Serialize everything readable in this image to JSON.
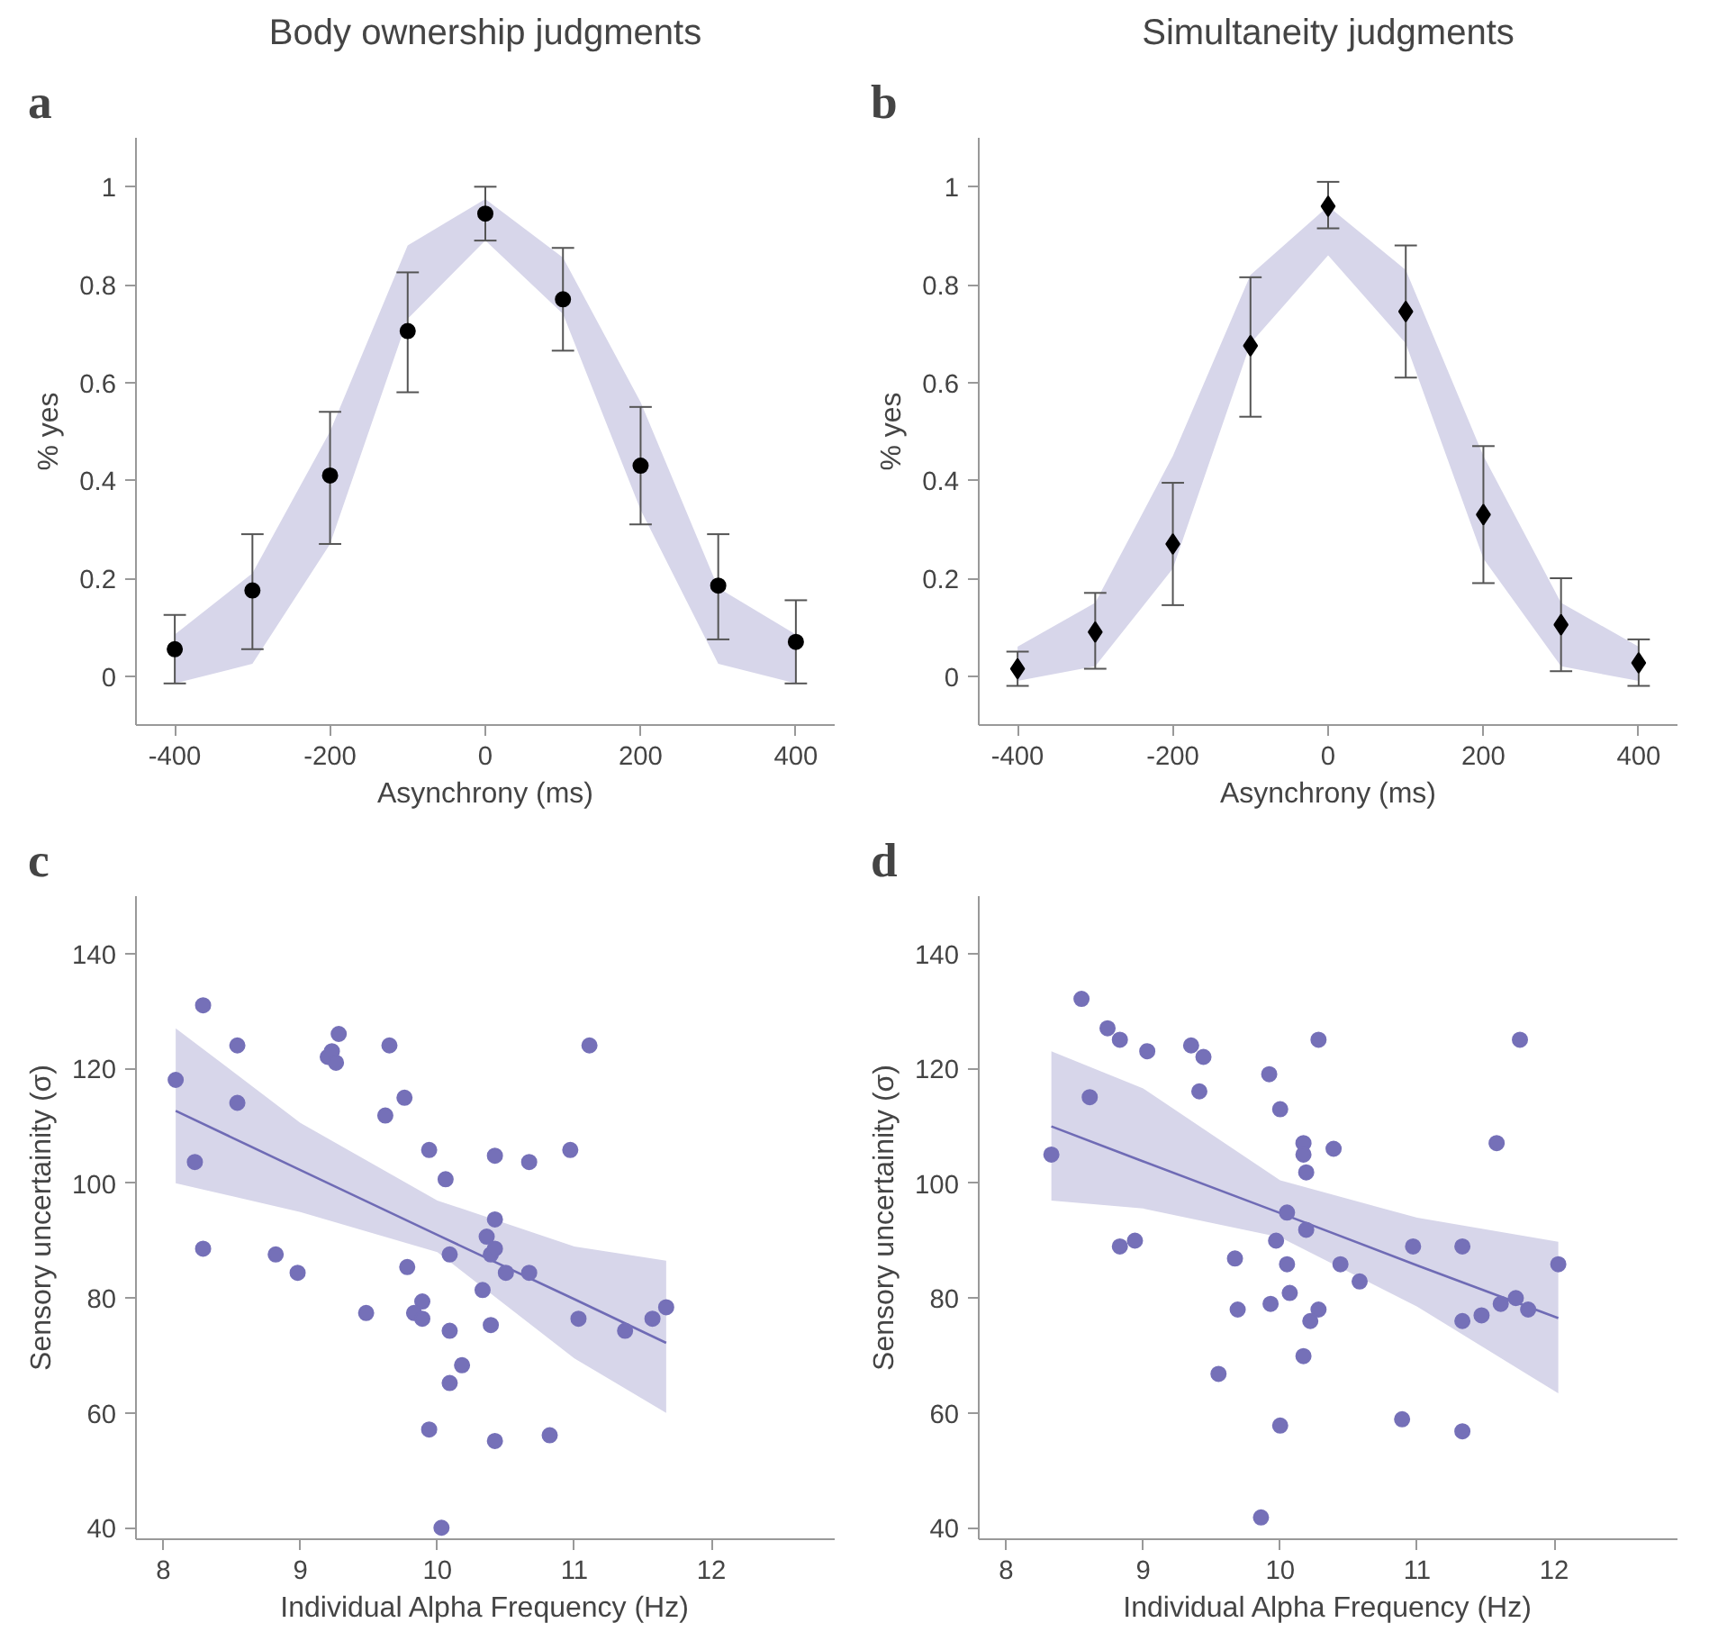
{
  "chart_data": [
    {
      "type": "scatter",
      "title": "Body ownership judgments",
      "xlabel": "Asynchrony (ms)",
      "ylabel": "% yes",
      "annotations": [
        "a"
      ],
      "x": [
        -400,
        -300,
        -200,
        -100,
        0,
        100,
        200,
        300,
        400
      ],
      "series": [
        {
          "color": "#000000",
          "marker": "circle",
          "values": [
            0.055,
            0.175,
            0.41,
            0.705,
            0.945,
            0.77,
            0.43,
            0.185,
            0.07
          ],
          "lower": [
            -0.015,
            0.025,
            0.27,
            0.73,
            0.89,
            0.74,
            0.34,
            0.025,
            -0.015
          ],
          "upper": [
            0.085,
            0.21,
            0.5,
            0.88,
            0.975,
            0.855,
            0.56,
            0.18,
            0.085
          ],
          "errors": [
            [
              -0.015,
              0.125
            ],
            [
              0.055,
              0.29
            ],
            [
              0.27,
              0.54
            ],
            [
              0.58,
              0.825
            ],
            [
              0.89,
              1.0
            ],
            [
              0.665,
              0.875
            ],
            [
              0.31,
              0.55
            ],
            [
              0.075,
              0.29
            ],
            [
              -0.015,
              0.155
            ]
          ]
        }
      ],
      "xlim": [
        -450,
        450
      ],
      "ylim": [
        -0.1,
        1.1
      ],
      "xticks": [
        -400,
        -200,
        0,
        200,
        400
      ],
      "yticks": [
        0,
        0.2,
        0.4,
        0.6,
        0.8,
        1
      ],
      "grid": false
    },
    {
      "type": "scatter",
      "title": "Simultaneity judgments",
      "xlabel": "Asynchrony (ms)",
      "ylabel": "% yes",
      "annotations": [
        "b"
      ],
      "x": [
        -400,
        -300,
        -200,
        -100,
        0,
        100,
        200,
        300,
        400
      ],
      "series": [
        {
          "color": "#000000",
          "marker": "diamond",
          "values": [
            0.015,
            0.09,
            0.27,
            0.675,
            0.96,
            0.745,
            0.33,
            0.105,
            0.027
          ],
          "lower": [
            -0.01,
            0.02,
            0.22,
            0.68,
            0.86,
            0.68,
            0.24,
            0.02,
            -0.01
          ],
          "upper": [
            0.06,
            0.15,
            0.45,
            0.82,
            0.96,
            0.83,
            0.45,
            0.15,
            0.06
          ],
          "errors": [
            [
              -0.02,
              0.05
            ],
            [
              0.015,
              0.17
            ],
            [
              0.145,
              0.395
            ],
            [
              0.53,
              0.815
            ],
            [
              0.915,
              1.01
            ],
            [
              0.61,
              0.88
            ],
            [
              0.19,
              0.47
            ],
            [
              0.01,
              0.2
            ],
            [
              -0.02,
              0.075
            ]
          ]
        }
      ],
      "xlim": [
        -450,
        450
      ],
      "ylim": [
        -0.1,
        1.1
      ],
      "xticks": [
        -400,
        -200,
        0,
        200,
        400
      ],
      "yticks": [
        0,
        0.2,
        0.4,
        0.6,
        0.8,
        1
      ],
      "grid": false
    },
    {
      "type": "scatter",
      "xlabel": "Individual Alpha Frequency (Hz)",
      "ylabel": "Sensory uncertainity (σ)",
      "annotations": [
        "c"
      ],
      "series": [
        {
          "type": "line",
          "color": "#6f6bb5",
          "x": [
            8.09,
            9,
            10,
            11,
            11.67
          ],
          "values": [
            112.6,
            102.3,
            91.0,
            79.8,
            72.2
          ],
          "lower": [
            100,
            95,
            88,
            69.5,
            60
          ],
          "upper": [
            127,
            110.5,
            97,
            89,
            86.5
          ]
        },
        {
          "color": "#7570b8",
          "marker": "circle",
          "x": [
            8.09,
            8.29,
            8.54,
            8.54,
            8.23,
            8.29,
            8.82,
            8.98,
            9.2,
            9.23,
            9.26,
            9.28,
            9.65,
            9.62,
            9.76,
            9.48,
            9.78,
            9.89,
            9.83,
            9.89,
            9.94,
            9.94,
            10.03,
            10.06,
            10.09,
            10.09,
            10.09,
            10.18,
            10.33,
            10.36,
            10.39,
            10.42,
            10.42,
            10.42,
            10.39,
            10.42,
            10.5,
            10.67,
            10.67,
            10.82,
            10.97,
            11.03,
            11.11,
            11.37,
            11.57,
            11.67
          ],
          "values": [
            118,
            131,
            124,
            114,
            103.7,
            88.6,
            87.6,
            84.4,
            122,
            123,
            121,
            126,
            124,
            111.8,
            114.9,
            77.4,
            85.4,
            79.4,
            77.4,
            76.4,
            105.8,
            57.1,
            40,
            100.7,
            87.6,
            74.3,
            65.2,
            68.3,
            81.4,
            90.7,
            87.6,
            88.6,
            93.7,
            104.8,
            75.3,
            55.1,
            84.4,
            103.7,
            84.4,
            56.1,
            105.8,
            76.4,
            124,
            74.3,
            76.4,
            78.4
          ]
        }
      ],
      "xlim": [
        7.8,
        12.9
      ],
      "ylim": [
        38,
        150
      ],
      "xticks": [
        8,
        9,
        10,
        11,
        12
      ],
      "yticks": [
        40,
        60,
        80,
        100,
        120,
        140
      ],
      "grid": false
    },
    {
      "type": "scatter",
      "xlabel": "Individual Alpha Frequency (Hz)",
      "ylabel": "Sensory uncertainity (σ)",
      "annotations": [
        "d"
      ],
      "series": [
        {
          "type": "line",
          "color": "#6f6bb5",
          "x": [
            8.33,
            9,
            10,
            11,
            12.03
          ],
          "values": [
            109.9,
            103.8,
            94.8,
            85.7,
            76.5
          ],
          "lower": [
            97,
            95.6,
            90.6,
            78.5,
            63.4
          ],
          "upper": [
            123,
            116.5,
            100.5,
            94,
            89.8
          ]
        },
        {
          "color": "#7570b8",
          "marker": "circle",
          "x": [
            8.33,
            8.55,
            8.61,
            8.74,
            8.83,
            8.83,
            8.94,
            9.03,
            9.35,
            9.44,
            9.41,
            9.55,
            9.67,
            9.69,
            9.86,
            9.92,
            9.93,
            9.97,
            10.0,
            10.0,
            10.05,
            10.05,
            10.07,
            10.17,
            10.17,
            10.19,
            10.19,
            10.17,
            10.22,
            10.28,
            10.28,
            10.39,
            10.44,
            10.58,
            10.89,
            10.97,
            11.33,
            11.33,
            11.33,
            11.47,
            11.58,
            11.61,
            11.72,
            11.75,
            11.81,
            12.03
          ],
          "values": [
            105,
            132.1,
            115,
            127,
            125,
            89,
            90,
            123,
            124,
            122,
            116,
            66.8,
            86.9,
            78,
            41.8,
            119,
            79,
            90,
            112.9,
            57.8,
            94.9,
            85.9,
            80.9,
            107,
            105,
            101.9,
            91.9,
            69.9,
            76,
            78,
            125,
            106,
            85.9,
            82.9,
            58.9,
            89,
            89,
            76,
            56.8,
            77,
            107,
            79,
            80,
            125,
            78,
            85.9
          ]
        }
      ],
      "xlim": [
        7.8,
        12.9
      ],
      "ylim": [
        38,
        150
      ],
      "xticks": [
        8,
        9,
        10,
        11,
        12
      ],
      "yticks": [
        40,
        60,
        80,
        100,
        120,
        140
      ],
      "grid": false
    }
  ]
}
